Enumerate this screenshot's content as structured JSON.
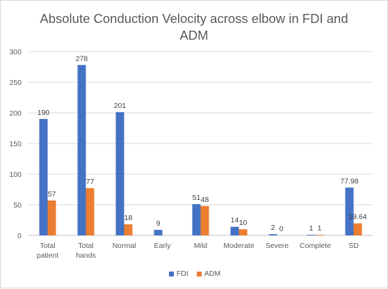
{
  "chart_data": {
    "type": "bar",
    "title": "Absolute Conduction Velocity across elbow in FDI and ADM",
    "categories": [
      "Total patient",
      "Total hands",
      "Normal",
      "Early",
      "Mild",
      "Moderate",
      "Severe",
      "Complete",
      "SD"
    ],
    "category_lines": [
      [
        "Total",
        "patient"
      ],
      [
        "Total",
        "hands"
      ],
      [
        "Normal"
      ],
      [
        "Early"
      ],
      [
        "Mild"
      ],
      [
        "Moderate"
      ],
      [
        "Severe"
      ],
      [
        "Complete"
      ],
      [
        "SD"
      ]
    ],
    "series": [
      {
        "name": "FDI",
        "color": "#4472c4",
        "values": [
          190,
          278,
          201,
          9,
          51,
          14,
          2,
          1,
          77.98
        ],
        "labels": [
          "190",
          "278",
          "201",
          "9",
          "51",
          "14",
          "2",
          "1",
          "77.98"
        ]
      },
      {
        "name": "ADM",
        "color": "#ed7d31",
        "values": [
          57,
          77,
          18,
          null,
          48,
          10,
          0,
          1,
          19.64
        ],
        "labels": [
          "57",
          "77",
          "18",
          "",
          "48",
          "10",
          "0",
          "1",
          "19.64"
        ]
      }
    ],
    "ylim": [
      0,
      300
    ],
    "yticks": [
      0,
      50,
      100,
      150,
      200,
      250,
      300
    ],
    "grid": true,
    "legend_position": "bottom"
  }
}
